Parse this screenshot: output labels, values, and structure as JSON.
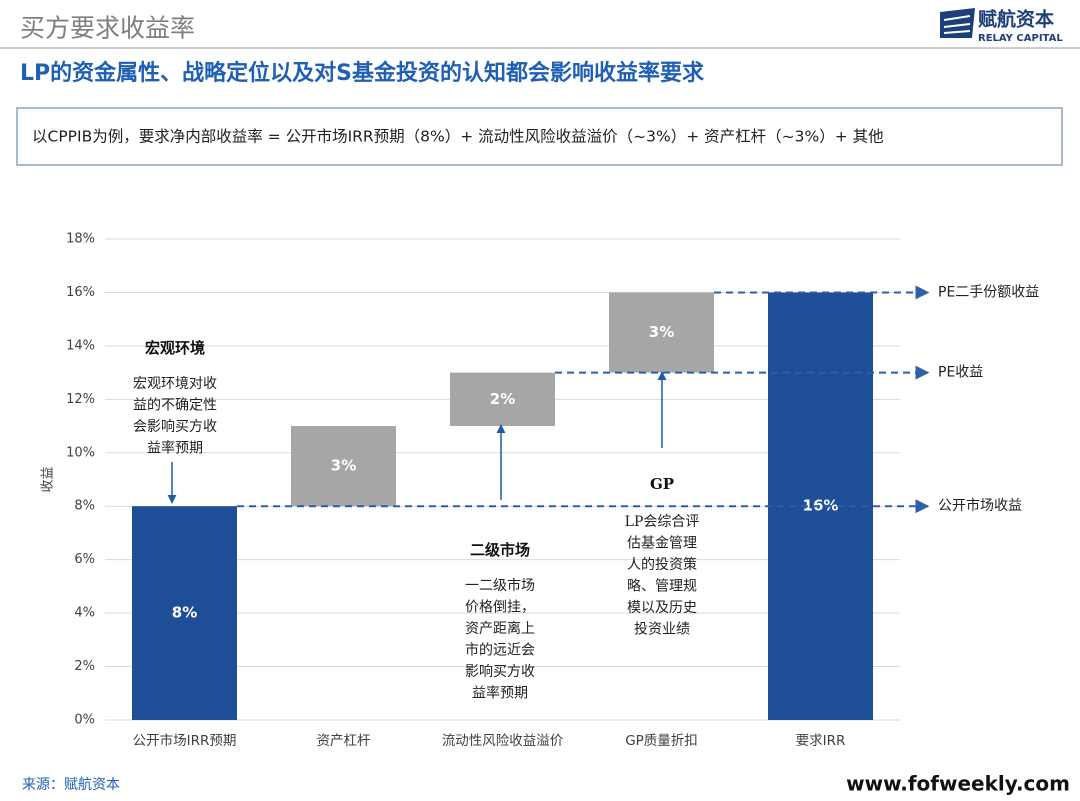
{
  "header": {
    "title": "买方要求收益率"
  },
  "logo": {
    "name": "赋航资本",
    "english": "RELAY CAPITAL"
  },
  "subtitle": "LP的资金属性、战略定位以及对S基金投资的认知都会影响收益率要求",
  "note": "以CPPIB为例，要求净内部收益率 = 公开市场IRR预期（8%）+ 流动性风险收益溢价（~3%）+ 资产杠杆（~3%）+ 其他",
  "chart_data": {
    "type": "waterfall",
    "ylabel": "收益",
    "categories": [
      "公开市场IRR预期",
      "资产杠杆",
      "流动性风险收益溢价",
      "GP质量折扣",
      "要求IRR"
    ],
    "values": [
      8,
      3,
      2,
      3,
      16
    ],
    "value_labels": [
      "8%",
      "3%",
      "2%",
      "3%",
      "16%"
    ],
    "measure": [
      "absolute",
      "relative",
      "relative",
      "relative",
      "total"
    ],
    "color_total": "#1f4e99",
    "color_change": "#a6a6a6",
    "ylim": [
      0,
      18
    ],
    "yticks": [
      {
        "value": 0,
        "label": "0%"
      },
      {
        "value": 2,
        "label": "2%"
      },
      {
        "value": 4,
        "label": "4%"
      },
      {
        "value": 6,
        "label": "6%"
      },
      {
        "value": 8,
        "label": "8%"
      },
      {
        "value": 10,
        "label": "10%"
      },
      {
        "value": 12,
        "label": "12%"
      },
      {
        "value": 14,
        "label": "14%"
      },
      {
        "value": 16,
        "label": "16%"
      },
      {
        "value": 18,
        "label": "18%"
      }
    ],
    "grid": true,
    "reference_lines": [
      {
        "value": 16,
        "label": "PE二手份额收益"
      },
      {
        "value": 13,
        "label": "PE收益"
      },
      {
        "value": 8,
        "label": "公开市场收益"
      }
    ],
    "annotations": [
      {
        "title": "宏观环境",
        "lines": [
          "宏观环境对收",
          "益的不确定性",
          "会影响买方收",
          "益率预期"
        ]
      },
      {
        "title": "二级市场",
        "lines": [
          "一二级市场",
          "价格倒挂，",
          "资产距离上",
          "市的远近会",
          "影响买方收",
          "益率预期"
        ]
      },
      {
        "title": "GP",
        "lines": [
          "LP会综合评",
          "估基金管理",
          "人的投资策",
          "略、管理规",
          "模以及历史",
          "投资业绩"
        ]
      }
    ]
  },
  "footer": {
    "source": "来源：赋航资本",
    "website": "www.fofweekly.com"
  }
}
